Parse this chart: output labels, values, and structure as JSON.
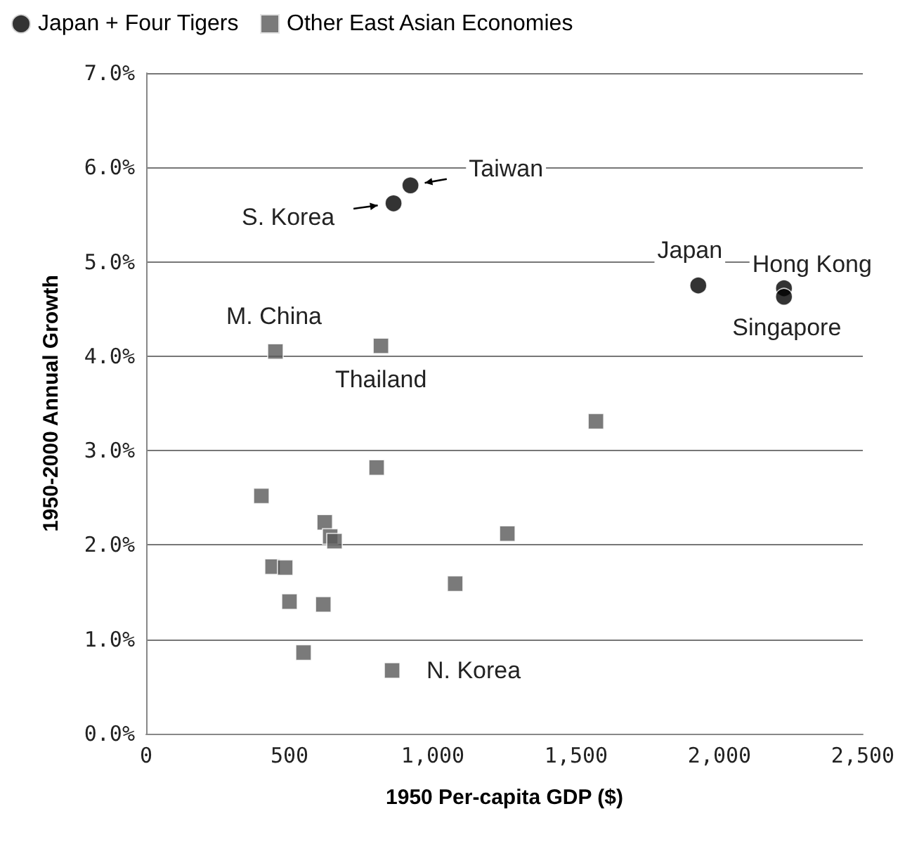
{
  "chart_data": {
    "type": "scatter",
    "xlabel": "1950 Per-capita GDP ($)",
    "ylabel": "1950-2000 Annual Growth",
    "series": [
      {
        "name": "Japan + Four Tigers",
        "color": "#000000",
        "marker": "circle",
        "x": [
          863,
          922,
          1926,
          2225,
          2225
        ],
        "values": [
          5.62,
          5.81,
          4.75,
          4.72,
          4.63
        ]
      },
      {
        "name": "Other East Asian Economies",
        "color": "#595959",
        "marker": "square",
        "x": [
          451,
          819,
          1569,
          402,
          804,
          623,
          642,
          657,
          1260,
          441,
          485,
          500,
          618,
          1078,
          549,
          858
        ],
        "values": [
          4.05,
          4.11,
          3.31,
          2.52,
          2.82,
          2.24,
          2.09,
          2.04,
          2.12,
          1.77,
          1.76,
          1.4,
          1.37,
          1.59,
          0.86,
          0.67
        ]
      }
    ],
    "xlim": [
      0,
      2500
    ],
    "xticks": [
      0,
      {
        "value": 500,
        "label": "500"
      },
      {
        "value": 1000,
        "label": "1,000"
      },
      {
        "value": 1500,
        "label": "1,500"
      },
      {
        "value": 2000,
        "label": "2,000"
      },
      {
        "value": 2500,
        "label": "2,500"
      }
    ],
    "ylim": [
      0,
      7
    ],
    "yticks": [
      {
        "value": 0,
        "label": "0.0%"
      },
      {
        "value": 1,
        "label": "1.0%"
      },
      {
        "value": 2,
        "label": "2.0%"
      },
      {
        "value": 3,
        "label": "3.0%"
      },
      {
        "value": 4,
        "label": "4.0%"
      },
      {
        "value": 5,
        "label": "5.0%"
      },
      {
        "value": 6,
        "label": "6.0%"
      },
      {
        "value": 7,
        "label": "7.0%"
      }
    ],
    "grid": "y",
    "legend": "top left",
    "annotations": [
      {
        "text": "S. Korea",
        "x": 863,
        "y": 5.62
      },
      {
        "text": "Taiwan",
        "x": 922,
        "y": 5.81
      },
      {
        "text": "Japan",
        "x": 1926,
        "y": 4.75
      },
      {
        "text": "Hong Kong",
        "x": 2225,
        "y": 4.72
      },
      {
        "text": "Singapore",
        "x": 2225,
        "y": 4.63
      },
      {
        "text": "M. China",
        "x": 451,
        "y": 4.05
      },
      {
        "text": "Thailand",
        "x": 819,
        "y": 4.11
      },
      {
        "text": "N. Korea",
        "x": 858,
        "y": 0.67
      }
    ]
  }
}
